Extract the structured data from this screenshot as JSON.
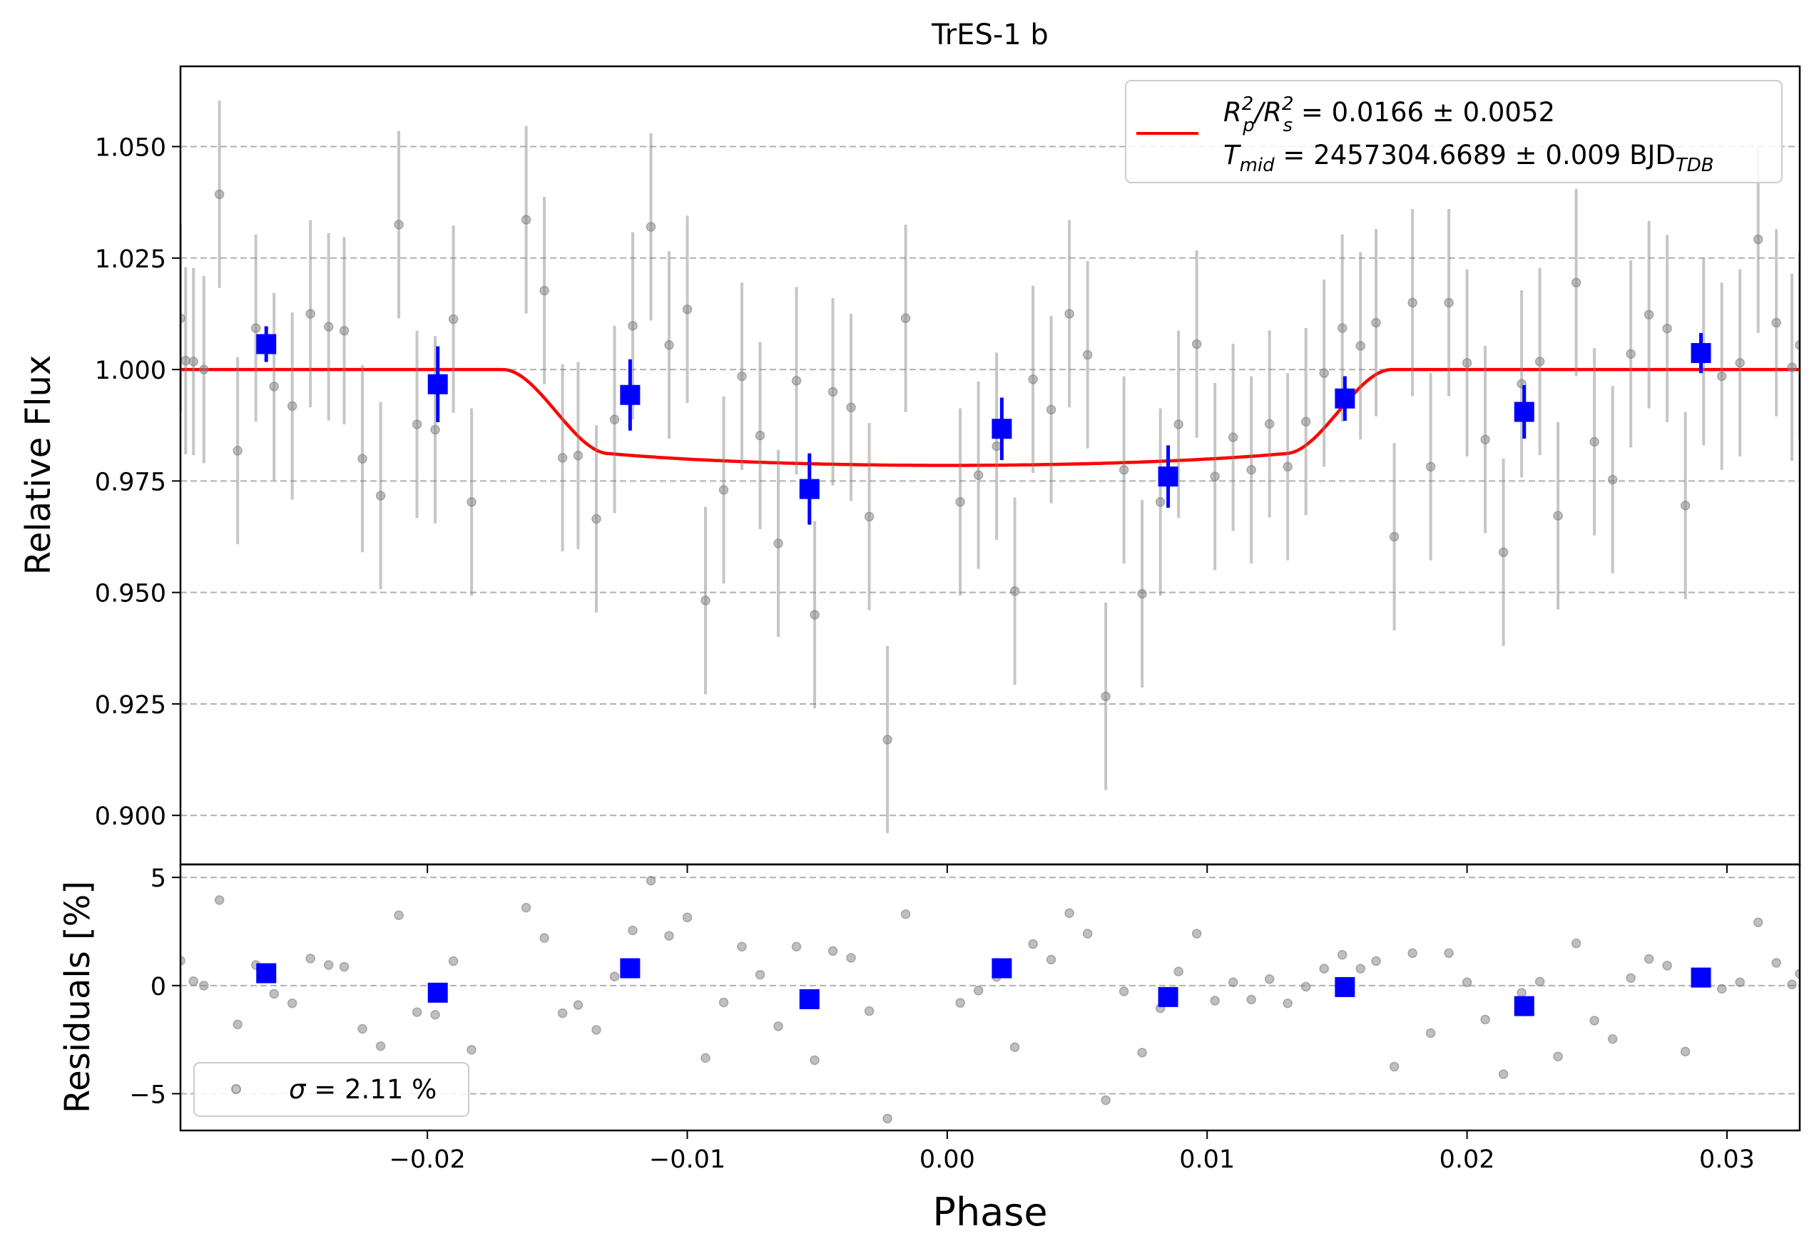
{
  "chart_data": [
    {
      "type": "scatter",
      "panel": "light curve",
      "title": "TrES-1 b",
      "xlabel": "",
      "ylabel": "Relative Flux",
      "xlim": [
        -0.0295,
        0.0328
      ],
      "ylim": [
        0.889,
        1.068
      ],
      "grid": "horizontal dashed",
      "legend": {
        "position": "upper right",
        "line1": {
          "prefix": "R",
          "sub1": "p",
          "sup1": "2",
          "mid": "/R",
          "sub2": "s",
          "sup2": "2",
          "suffix": " = 0.0166 ± 0.0052"
        },
        "line2": {
          "prefix": "T",
          "sub1": "mid",
          "suffix": " = 2457304.6689 ± 0.009 BJD",
          "sub2": "TDB"
        }
      },
      "yticks": [
        "0.900",
        "0.925",
        "0.950",
        "0.975",
        "1.000",
        "1.025",
        "1.050"
      ],
      "ytick_values": [
        0.9,
        0.925,
        0.95,
        0.975,
        1.0,
        1.025,
        1.05
      ],
      "series": [
        {
          "kind": "raw",
          "color": "#808080",
          "error": 0.021,
          "points": [
            [
              -0.0295,
              1.0115
            ],
            [
              -0.0293,
              1.002
            ],
            [
              -0.029,
              1.0018
            ],
            [
              -0.0286,
              1.0
            ],
            [
              -0.028,
              1.0393
            ],
            [
              -0.0273,
              0.9818
            ],
            [
              -0.0266,
              1.0093
            ],
            [
              -0.0259,
              0.9962
            ],
            [
              -0.0252,
              0.9918
            ],
            [
              -0.0245,
              1.0125
            ],
            [
              -0.0238,
              1.0096
            ],
            [
              -0.0232,
              1.0087
            ],
            [
              -0.0225,
              0.98
            ],
            [
              -0.0218,
              0.9717
            ],
            [
              -0.0211,
              1.0325
            ],
            [
              -0.0204,
              0.9877
            ],
            [
              -0.0197,
              0.9865
            ],
            [
              -0.019,
              1.0113
            ],
            [
              -0.0183,
              0.9703
            ],
            [
              -0.0162,
              1.0336
            ],
            [
              -0.0155,
              1.0177
            ],
            [
              -0.0148,
              0.9802
            ],
            [
              -0.0142,
              0.9807
            ],
            [
              -0.0135,
              0.9665
            ],
            [
              -0.0128,
              0.9888
            ],
            [
              -0.0121,
              1.0098
            ],
            [
              -0.0114,
              1.032
            ],
            [
              -0.0107,
              1.0055
            ],
            [
              -0.01,
              1.0135
            ],
            [
              -0.0093,
              0.9482
            ],
            [
              -0.0086,
              0.973
            ],
            [
              -0.0079,
              0.9985
            ],
            [
              -0.0072,
              0.9852
            ],
            [
              -0.0065,
              0.961
            ],
            [
              -0.0058,
              0.9975
            ],
            [
              -0.0051,
              0.945
            ],
            [
              -0.0044,
              0.995
            ],
            [
              -0.0037,
              0.9915
            ],
            [
              -0.003,
              0.967
            ],
            [
              -0.0023,
              0.917
            ],
            [
              -0.0016,
              1.0115
            ],
            [
              0.0005,
              0.9703
            ],
            [
              0.0012,
              0.9763
            ],
            [
              0.0019,
              0.9828
            ],
            [
              0.0026,
              0.9503
            ],
            [
              0.0033,
              0.9978
            ],
            [
              0.004,
              0.991
            ],
            [
              0.0047,
              1.0125
            ],
            [
              0.0054,
              1.0033
            ],
            [
              0.0061,
              0.9267
            ],
            [
              0.0068,
              0.9775
            ],
            [
              0.0075,
              0.9497
            ],
            [
              0.0082,
              0.9703
            ],
            [
              0.0089,
              0.9877
            ],
            [
              0.0096,
              1.0057
            ],
            [
              0.0103,
              0.976
            ],
            [
              0.011,
              0.9848
            ],
            [
              0.0117,
              0.9775
            ],
            [
              0.0124,
              0.9878
            ],
            [
              0.0131,
              0.9782
            ],
            [
              0.0138,
              0.9883
            ],
            [
              0.0145,
              0.9992
            ],
            [
              0.0152,
              1.0093
            ],
            [
              0.0159,
              1.0053
            ],
            [
              0.0165,
              1.0105
            ],
            [
              0.0172,
              0.9625
            ],
            [
              0.0179,
              1.015
            ],
            [
              0.0186,
              0.9782
            ],
            [
              0.0193,
              1.015
            ],
            [
              0.02,
              1.0015
            ],
            [
              0.0207,
              0.9843
            ],
            [
              0.0214,
              0.959
            ],
            [
              0.0221,
              0.9968
            ],
            [
              0.0228,
              1.0018
            ],
            [
              0.0235,
              0.9672
            ],
            [
              0.0242,
              1.0195
            ],
            [
              0.0249,
              0.9838
            ],
            [
              0.0256,
              0.9753
            ],
            [
              0.0263,
              1.0035
            ],
            [
              0.027,
              1.0123
            ],
            [
              0.0277,
              1.0092
            ],
            [
              0.0284,
              0.9695
            ],
            [
              0.0291,
              1.004
            ],
            [
              0.0298,
              0.9985
            ],
            [
              0.0305,
              1.0015
            ],
            [
              0.0312,
              1.0292
            ],
            [
              0.0319,
              1.0105
            ],
            [
              0.0325,
              1.0005
            ],
            [
              0.0328,
              1.0055
            ]
          ]
        },
        {
          "kind": "binned",
          "color": "#0000ff",
          "points": [
            [
              -0.0262,
              1.0057,
              0.004
            ],
            [
              -0.0196,
              0.9967,
              0.0085
            ],
            [
              -0.0122,
              0.9943,
              0.008
            ],
            [
              -0.0053,
              0.9732,
              0.008
            ],
            [
              0.0021,
              0.9867,
              0.007
            ],
            [
              0.0085,
              0.976,
              0.007
            ],
            [
              0.0153,
              0.9935,
              0.005
            ],
            [
              0.0222,
              0.9905,
              0.006
            ],
            [
              0.029,
              1.0037,
              0.0045
            ]
          ]
        },
        {
          "kind": "model",
          "name": "transit model",
          "color": "#ff0000",
          "depth": 0.0215,
          "t1": 0.0171,
          "t2": 0.013,
          "limb": 0.35
        }
      ]
    },
    {
      "type": "scatter",
      "panel": "residuals",
      "xlabel": "Phase",
      "ylabel": "Residuals [%]",
      "xlim": [
        -0.0295,
        0.0328
      ],
      "ylim": [
        -6.7,
        5.6
      ],
      "grid": "horizontal dashed",
      "legend": {
        "position": "lower left",
        "prefix": "σ",
        "suffix": " = 2.11 %"
      },
      "yticks": [
        "−5",
        "0",
        "5"
      ],
      "ytick_values": [
        -5,
        0,
        5
      ],
      "xticks": [
        "−0.02",
        "−0.01",
        "0.00",
        "0.01",
        "0.02",
        "0.03"
      ],
      "xtick_values": [
        -0.02,
        -0.01,
        0.0,
        0.01,
        0.02,
        0.03
      ],
      "series": [
        {
          "kind": "raw",
          "color": "#808080",
          "points": [
            [
              -0.0295,
              1.15
            ],
            [
              -0.029,
              0.2
            ],
            [
              -0.0286,
              0.0
            ],
            [
              -0.028,
              3.95
            ],
            [
              -0.0273,
              -1.8
            ],
            [
              -0.0266,
              0.95
            ],
            [
              -0.0259,
              -0.38
            ],
            [
              -0.0252,
              -0.82
            ],
            [
              -0.0245,
              1.25
            ],
            [
              -0.0238,
              0.95
            ],
            [
              -0.0232,
              0.87
            ],
            [
              -0.0225,
              -2.0
            ],
            [
              -0.0218,
              -2.8
            ],
            [
              -0.0211,
              3.25
            ],
            [
              -0.0204,
              -1.23
            ],
            [
              -0.0197,
              -1.35
            ],
            [
              -0.019,
              1.13
            ],
            [
              -0.0183,
              -2.97
            ],
            [
              -0.0162,
              3.6
            ],
            [
              -0.0155,
              2.2
            ],
            [
              -0.0148,
              -1.28
            ],
            [
              -0.0142,
              -0.9
            ],
            [
              -0.0135,
              -2.05
            ],
            [
              -0.0128,
              0.42
            ],
            [
              -0.0121,
              2.55
            ],
            [
              -0.0114,
              4.85
            ],
            [
              -0.0107,
              2.3
            ],
            [
              -0.01,
              3.15
            ],
            [
              -0.0093,
              -3.35
            ],
            [
              -0.0086,
              -0.78
            ],
            [
              -0.0079,
              1.8
            ],
            [
              -0.0072,
              0.5
            ],
            [
              -0.0065,
              -1.88
            ],
            [
              -0.0058,
              1.8
            ],
            [
              -0.0051,
              -3.45
            ],
            [
              -0.0044,
              1.6
            ],
            [
              -0.0037,
              1.28
            ],
            [
              -0.003,
              -1.18
            ],
            [
              -0.0023,
              -6.15
            ],
            [
              -0.0016,
              3.3
            ],
            [
              0.0005,
              -0.8
            ],
            [
              0.0012,
              -0.23
            ],
            [
              0.0019,
              0.4
            ],
            [
              0.0026,
              -2.85
            ],
            [
              0.0033,
              1.92
            ],
            [
              0.004,
              1.2
            ],
            [
              0.0047,
              3.35
            ],
            [
              0.0054,
              2.4
            ],
            [
              0.0061,
              -5.3
            ],
            [
              0.0068,
              -0.27
            ],
            [
              0.0075,
              -3.1
            ],
            [
              0.0082,
              -1.05
            ],
            [
              0.0089,
              0.65
            ],
            [
              0.0096,
              2.4
            ],
            [
              0.0103,
              -0.7
            ],
            [
              0.011,
              0.15
            ],
            [
              0.0117,
              -0.65
            ],
            [
              0.0124,
              0.3
            ],
            [
              0.0131,
              -0.82
            ],
            [
              0.0138,
              -0.05
            ],
            [
              0.0145,
              0.78
            ],
            [
              0.0152,
              1.42
            ],
            [
              0.0159,
              0.78
            ],
            [
              0.0165,
              1.13
            ],
            [
              0.0172,
              -3.75
            ],
            [
              0.0179,
              1.5
            ],
            [
              0.0186,
              -2.2
            ],
            [
              0.0193,
              1.5
            ],
            [
              0.02,
              0.15
            ],
            [
              0.0207,
              -1.57
            ],
            [
              0.0214,
              -4.1
            ],
            [
              0.0221,
              -0.33
            ],
            [
              0.0228,
              0.18
            ],
            [
              0.0235,
              -3.28
            ],
            [
              0.0242,
              1.95
            ],
            [
              0.0249,
              -1.62
            ],
            [
              0.0256,
              -2.47
            ],
            [
              0.0263,
              0.35
            ],
            [
              0.027,
              1.23
            ],
            [
              0.0277,
              0.92
            ],
            [
              0.0284,
              -3.05
            ],
            [
              0.0291,
              0.4
            ],
            [
              0.0298,
              -0.15
            ],
            [
              0.0305,
              0.15
            ],
            [
              0.0312,
              2.92
            ],
            [
              0.0319,
              1.05
            ],
            [
              0.0325,
              0.05
            ],
            [
              0.0328,
              0.55
            ]
          ]
        },
        {
          "kind": "binned",
          "color": "#0000ff",
          "points": [
            [
              -0.0262,
              0.57
            ],
            [
              -0.0196,
              -0.33
            ],
            [
              -0.0122,
              0.8
            ],
            [
              -0.0053,
              -0.63
            ],
            [
              0.0021,
              0.8
            ],
            [
              0.0085,
              -0.53
            ],
            [
              0.0153,
              -0.07
            ],
            [
              0.0222,
              -0.95
            ],
            [
              0.029,
              0.37
            ]
          ]
        }
      ]
    }
  ]
}
